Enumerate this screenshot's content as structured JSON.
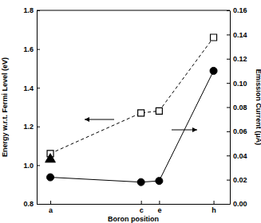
{
  "chart_data": {
    "type": "line",
    "xlabel": "Boron position",
    "ylabel": "Energy w.r.t. Fermi Level (eV)",
    "y2label": "Emission Current (μA)",
    "x": [
      0,
      5,
      6,
      9
    ],
    "xlim": [
      -0.75,
      9.9
    ],
    "xticks": [
      {
        "value": 0,
        "label": "a"
      },
      {
        "value": 5,
        "label": "c"
      },
      {
        "value": 6,
        "label": "e"
      },
      {
        "value": 9,
        "label": "h"
      }
    ],
    "ylim": [
      0.8,
      1.8
    ],
    "yticks": [
      0.8,
      {
        "value": 1,
        "label": "1.0"
      },
      1.2,
      1.4,
      1.6,
      1.8
    ],
    "y2lim": [
      0,
      0.16
    ],
    "y2ticks": [
      {
        "value": 0,
        "label": "0.00"
      },
      0.02,
      0.04,
      0.06,
      0.08,
      {
        "value": 0.1,
        "label": "0.10"
      },
      0.12,
      0.14,
      0.16
    ],
    "series": [
      {
        "values": [
          1.06,
          1.27,
          1.28,
          1.66
        ],
        "color": "#000000",
        "marker": "square",
        "line_style": "dashed"
      },
      {
        "values": [
          0.022,
          0.018,
          0.019,
          0.11
        ],
        "color": "#000000",
        "marker": "circle",
        "line_style": "solid",
        "axis": "y2"
      },
      {
        "values": [
          1.03,
          null,
          null,
          null
        ],
        "color": "#000000",
        "marker": "triangle",
        "line_style": "none"
      }
    ]
  }
}
